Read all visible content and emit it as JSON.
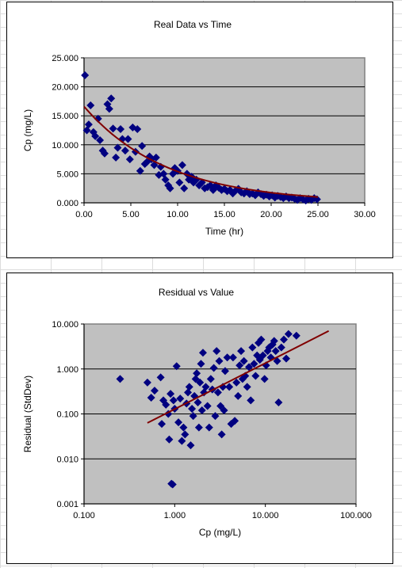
{
  "chart_data": [
    {
      "type": "scatter",
      "title": "Real Data vs Time",
      "xlabel": "Time (hr)",
      "ylabel": "Cp (mg/L)",
      "xlim": [
        0,
        30
      ],
      "ylim": [
        0,
        25
      ],
      "x_ticks": [
        "0.00",
        "5.00",
        "10.00",
        "15.00",
        "20.00",
        "25.00",
        "30.00"
      ],
      "y_ticks": [
        "0.000",
        "5.000",
        "10.000",
        "15.000",
        "20.000",
        "25.000"
      ],
      "grid": true,
      "plot_background": "#c0c0c0",
      "marker_color": "#000080",
      "trend_color": "#800000",
      "trendline": "exponential",
      "trend_points": [
        [
          0,
          16.6
        ],
        [
          5,
          10.5
        ],
        [
          10,
          6.0
        ],
        [
          15,
          3.3
        ],
        [
          20,
          1.8
        ],
        [
          25,
          1.0
        ]
      ],
      "points": [
        [
          0.1,
          22.0
        ],
        [
          0.3,
          12.5
        ],
        [
          0.5,
          13.5
        ],
        [
          0.7,
          16.8
        ],
        [
          1.0,
          12.2
        ],
        [
          1.2,
          11.5
        ],
        [
          1.5,
          14.5
        ],
        [
          1.7,
          10.8
        ],
        [
          2.0,
          9.0
        ],
        [
          2.2,
          8.5
        ],
        [
          2.5,
          17.0
        ],
        [
          2.7,
          16.2
        ],
        [
          2.9,
          18.0
        ],
        [
          3.1,
          12.8
        ],
        [
          3.4,
          7.8
        ],
        [
          3.6,
          9.5
        ],
        [
          3.9,
          12.7
        ],
        [
          4.1,
          11.0
        ],
        [
          4.4,
          9.0
        ],
        [
          4.7,
          11.0
        ],
        [
          4.9,
          7.5
        ],
        [
          5.2,
          13.0
        ],
        [
          5.5,
          8.8
        ],
        [
          5.7,
          12.7
        ],
        [
          6.0,
          5.5
        ],
        [
          6.2,
          9.8
        ],
        [
          6.5,
          6.7
        ],
        [
          6.7,
          7.0
        ],
        [
          7.0,
          8.0
        ],
        [
          7.2,
          7.5
        ],
        [
          7.5,
          6.5
        ],
        [
          7.7,
          7.8
        ],
        [
          8.0,
          4.8
        ],
        [
          8.2,
          6.2
        ],
        [
          8.5,
          5.0
        ],
        [
          8.7,
          4.0
        ],
        [
          9.0,
          3.0
        ],
        [
          9.2,
          2.5
        ],
        [
          9.5,
          5.0
        ],
        [
          9.7,
          6.0
        ],
        [
          10.0,
          5.5
        ],
        [
          10.2,
          3.5
        ],
        [
          10.5,
          6.5
        ],
        [
          10.7,
          2.5
        ],
        [
          11.0,
          5.0
        ],
        [
          11.2,
          4.0
        ],
        [
          11.5,
          4.5
        ],
        [
          11.7,
          3.5
        ],
        [
          12.0,
          4.0
        ],
        [
          12.3,
          3.0
        ],
        [
          12.6,
          3.5
        ],
        [
          12.9,
          2.5
        ],
        [
          13.2,
          2.7
        ],
        [
          13.5,
          3.0
        ],
        [
          13.8,
          2.2
        ],
        [
          14.1,
          3.0
        ],
        [
          14.4,
          2.6
        ],
        [
          14.7,
          2.2
        ],
        [
          15.0,
          2.4
        ],
        [
          15.3,
          2.0
        ],
        [
          15.6,
          2.2
        ],
        [
          15.9,
          1.6
        ],
        [
          16.2,
          2.1
        ],
        [
          16.5,
          2.4
        ],
        [
          16.8,
          1.8
        ],
        [
          17.1,
          1.6
        ],
        [
          17.4,
          2.0
        ],
        [
          17.7,
          1.5
        ],
        [
          18.0,
          1.6
        ],
        [
          18.3,
          1.3
        ],
        [
          18.6,
          1.8
        ],
        [
          18.9,
          1.5
        ],
        [
          19.2,
          1.2
        ],
        [
          19.5,
          1.4
        ],
        [
          19.8,
          1.1
        ],
        [
          20.1,
          1.3
        ],
        [
          20.4,
          0.9
        ],
        [
          20.7,
          1.2
        ],
        [
          21.0,
          1.0
        ],
        [
          21.3,
          0.8
        ],
        [
          21.6,
          1.1
        ],
        [
          21.9,
          0.8
        ],
        [
          22.2,
          0.9
        ],
        [
          22.5,
          0.7
        ],
        [
          22.8,
          0.5
        ],
        [
          23.1,
          0.8
        ],
        [
          23.4,
          0.6
        ],
        [
          23.7,
          0.4
        ],
        [
          24.0,
          0.7
        ],
        [
          24.3,
          0.5
        ],
        [
          24.6,
          0.8
        ],
        [
          24.9,
          0.6
        ]
      ]
    },
    {
      "type": "scatter",
      "title": "Residual vs Value",
      "xlabel": "Cp (mg/L)",
      "ylabel": "Residual (StdDev)",
      "x_scale": "log",
      "y_scale": "log",
      "xlim": [
        0.1,
        100
      ],
      "ylim": [
        0.001,
        10
      ],
      "x_ticks": [
        "0.100",
        "1.000",
        "10.000",
        "100.000"
      ],
      "y_ticks": [
        "0.001",
        "0.010",
        "0.100",
        "1.000",
        "10.000"
      ],
      "grid": true,
      "plot_background": "#c0c0c0",
      "marker_color": "#000080",
      "trend_color": "#800000",
      "trendline": "power",
      "trend_points": [
        [
          0.5,
          0.063
        ],
        [
          50,
          7.0
        ]
      ],
      "points": [
        [
          0.25,
          0.6
        ],
        [
          0.5,
          0.5
        ],
        [
          0.55,
          0.23
        ],
        [
          0.6,
          0.33
        ],
        [
          0.7,
          0.65
        ],
        [
          0.72,
          0.06
        ],
        [
          0.75,
          0.2
        ],
        [
          0.8,
          0.16
        ],
        [
          0.85,
          0.1
        ],
        [
          0.87,
          0.027
        ],
        [
          0.9,
          0.28
        ],
        [
          0.92,
          0.0028
        ],
        [
          0.95,
          0.0027
        ],
        [
          0.97,
          0.2
        ],
        [
          1.0,
          0.13
        ],
        [
          1.05,
          1.15
        ],
        [
          1.1,
          0.065
        ],
        [
          1.15,
          0.22
        ],
        [
          1.2,
          0.025
        ],
        [
          1.25,
          0.05
        ],
        [
          1.3,
          0.035
        ],
        [
          1.35,
          0.17
        ],
        [
          1.4,
          0.3
        ],
        [
          1.45,
          0.4
        ],
        [
          1.5,
          0.02
        ],
        [
          1.55,
          0.13
        ],
        [
          1.6,
          0.09
        ],
        [
          1.65,
          0.25
        ],
        [
          1.7,
          0.6
        ],
        [
          1.75,
          0.8
        ],
        [
          1.8,
          0.18
        ],
        [
          1.85,
          0.05
        ],
        [
          1.9,
          0.5
        ],
        [
          1.95,
          1.3
        ],
        [
          2.0,
          0.12
        ],
        [
          2.05,
          2.3
        ],
        [
          2.1,
          0.3
        ],
        [
          2.2,
          0.4
        ],
        [
          2.3,
          0.15
        ],
        [
          2.4,
          0.05
        ],
        [
          2.5,
          0.6
        ],
        [
          2.6,
          0.35
        ],
        [
          2.7,
          1.05
        ],
        [
          2.8,
          0.09
        ],
        [
          2.9,
          2.5
        ],
        [
          3.0,
          0.3
        ],
        [
          3.1,
          1.5
        ],
        [
          3.2,
          0.15
        ],
        [
          3.3,
          0.035
        ],
        [
          3.4,
          0.4
        ],
        [
          3.5,
          0.12
        ],
        [
          3.6,
          0.9
        ],
        [
          3.8,
          1.8
        ],
        [
          4.0,
          0.4
        ],
        [
          4.2,
          0.06
        ],
        [
          4.4,
          1.8
        ],
        [
          4.6,
          0.07
        ],
        [
          4.8,
          0.5
        ],
        [
          5.0,
          0.25
        ],
        [
          5.2,
          1.2
        ],
        [
          5.4,
          2.5
        ],
        [
          5.6,
          0.6
        ],
        [
          5.8,
          1.5
        ],
        [
          6.0,
          0.7
        ],
        [
          6.3,
          0.4
        ],
        [
          6.6,
          1.1
        ],
        [
          6.9,
          0.2
        ],
        [
          7.2,
          3.0
        ],
        [
          7.5,
          1.3
        ],
        [
          7.8,
          0.7
        ],
        [
          8.1,
          2.0
        ],
        [
          8.4,
          3.8
        ],
        [
          8.7,
          1.6
        ],
        [
          9.0,
          4.5
        ],
        [
          9.4,
          2.0
        ],
        [
          9.8,
          0.6
        ],
        [
          10.2,
          1.2
        ],
        [
          10.6,
          2.5
        ],
        [
          11.0,
          3.0
        ],
        [
          11.5,
          1.8
        ],
        [
          12.0,
          3.5
        ],
        [
          12.5,
          4.2
        ],
        [
          13.0,
          2.5
        ],
        [
          13.5,
          1.5
        ],
        [
          14.0,
          0.18
        ],
        [
          15.0,
          3.0
        ],
        [
          16.0,
          4.5
        ],
        [
          17.0,
          1.7
        ],
        [
          18.0,
          6.0
        ],
        [
          22.0,
          5.5
        ]
      ]
    }
  ]
}
